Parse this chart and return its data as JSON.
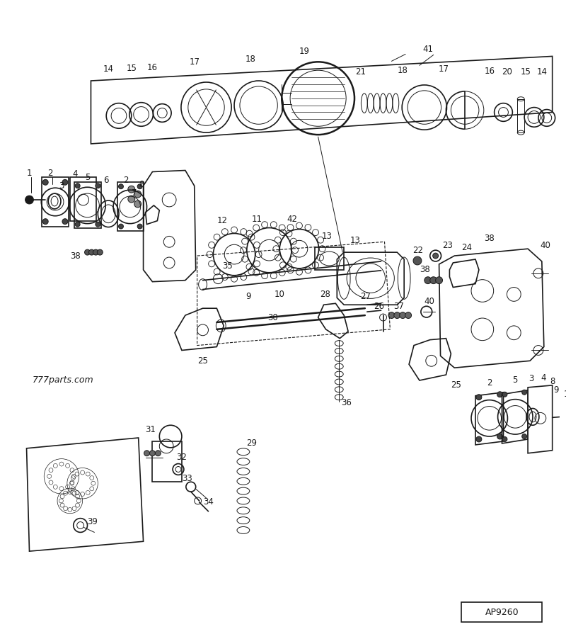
{
  "diagram_id": "AP9260",
  "watermark": "777parts.com",
  "bg_color": "#ffffff",
  "line_color": "#1a1a1a",
  "fig_width": 8.0,
  "fig_height": 9.02,
  "dpi": 100
}
